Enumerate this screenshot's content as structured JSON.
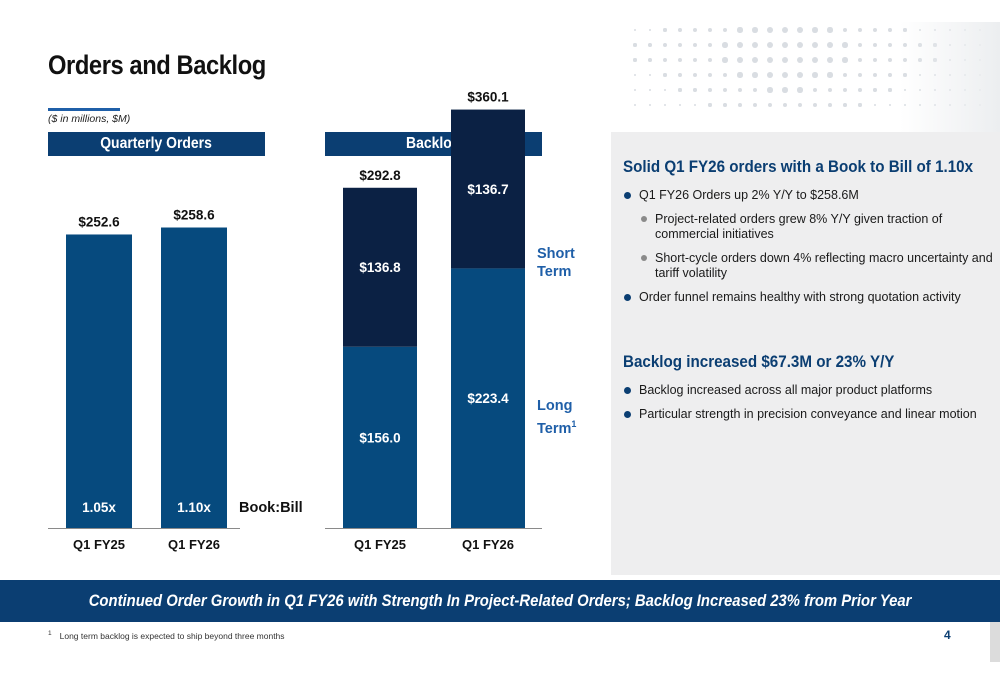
{
  "title": "Orders and Backlog",
  "units_note": "($ in millions, $M)",
  "page_number": "4",
  "banner_text": "Continued Order Growth in Q1 FY26 with Strength In Project-Related Orders; Backlog Increased 23% from Prior Year",
  "footnote": {
    "marker": "1",
    "text": "Long term backlog is expected to ship beyond three months"
  },
  "colors": {
    "navy": "#0b3e72",
    "bar_blue": "#064a7e",
    "short_term": "#0b2144",
    "accent": "#1f5fa8"
  },
  "labels": {
    "short_term": [
      "Short",
      "Term"
    ],
    "long_term": [
      "Long",
      "Term"
    ],
    "long_term_sup": "1",
    "book_bill": "Book:Bill"
  },
  "panel": {
    "heading1": "Solid Q1 FY26 orders with a Book to Bill of 1.10x",
    "bullets1": [
      {
        "level": 1,
        "text": "Q1 FY26 Orders up 2% Y/Y to $258.6M"
      },
      {
        "level": 2,
        "text": "Project-related orders grew 8% Y/Y given traction of commercial initiatives"
      },
      {
        "level": 2,
        "text": "Short-cycle orders down 4% reflecting macro uncertainty and tariff volatility"
      },
      {
        "level": 1,
        "text": "Order funnel remains healthy with strong quotation activity"
      }
    ],
    "heading2": "Backlog increased $67.3M or 23% Y/Y",
    "bullets2": [
      {
        "level": 1,
        "text": "Backlog increased across all major product platforms"
      },
      {
        "level": 1,
        "text": "Particular strength in precision conveyance and linear motion"
      }
    ]
  },
  "chart_data": [
    {
      "type": "bar",
      "title": "Quarterly Orders",
      "categories": [
        "Q1 FY25",
        "Q1 FY26"
      ],
      "values": [
        252.6,
        258.6
      ],
      "value_labels": [
        "$252.6",
        "$258.6"
      ],
      "book_to_bill": [
        "1.05x",
        "1.10x"
      ],
      "xlabel": "",
      "ylabel": ""
    },
    {
      "type": "bar",
      "stacked": true,
      "title": "Backlog",
      "categories": [
        "Q1 FY25",
        "Q1 FY26"
      ],
      "series": [
        {
          "name": "Long Term",
          "values": [
            156.0,
            223.4
          ],
          "labels": [
            "$156.0",
            "$223.4"
          ]
        },
        {
          "name": "Short Term",
          "values": [
            136.8,
            136.7
          ],
          "labels": [
            "$136.8",
            "$136.7"
          ]
        }
      ],
      "totals": [
        292.8,
        360.1
      ],
      "total_labels": [
        "$292.8",
        "$360.1"
      ],
      "xlabel": "",
      "ylabel": ""
    }
  ]
}
